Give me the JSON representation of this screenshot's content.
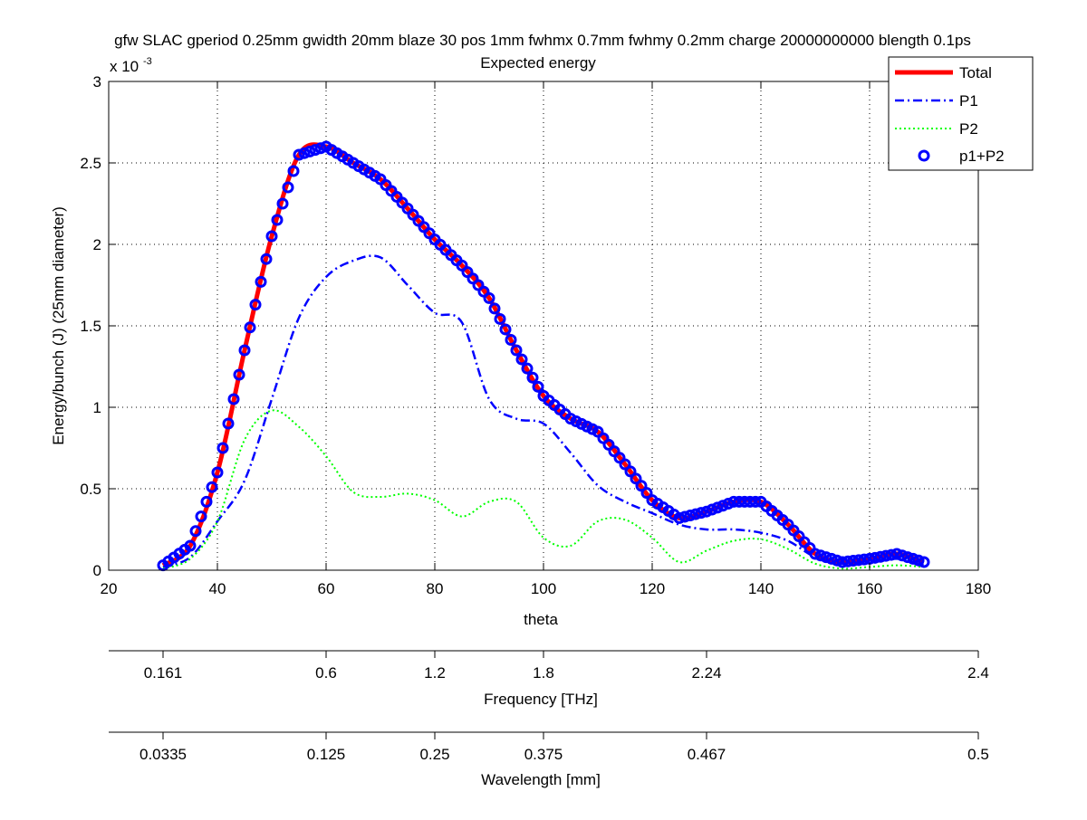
{
  "figure": {
    "title": "gfw SLAC gperiod 0.25mm gwidth 20mm blaze 30 pos 1mm fwhmx 0.7mm fwhmy 0.2mm charge 20000000000 blength 0.1ps",
    "subtitle": "Expected energy"
  },
  "chart_data": [
    {
      "type": "line",
      "title": "gfw SLAC gperiod 0.25mm gwidth 20mm blaze 30 pos 1mm fwhmx 0.7mm fwhmy 0.2mm charge 20000000000 blength 0.1ps",
      "subtitle": "Expected energy",
      "xlabel": "theta",
      "ylabel": "Energy/bunch (J) (25mm diameter)",
      "y_exponent_label": "x 10",
      "y_exponent": "-3",
      "xlim": [
        20,
        180
      ],
      "ylim": [
        0,
        3
      ],
      "xticks": [
        20,
        40,
        60,
        80,
        100,
        120,
        140,
        160,
        180
      ],
      "yticks": [
        0,
        0.5,
        1,
        1.5,
        2,
        2.5,
        3
      ],
      "grid": true,
      "legend_position": "top-right",
      "x": [
        30,
        35,
        40,
        45,
        50,
        55,
        60,
        65,
        70,
        75,
        80,
        85,
        90,
        95,
        100,
        105,
        110,
        115,
        120,
        125,
        130,
        135,
        140,
        145,
        150,
        155,
        160,
        165,
        170
      ],
      "series": [
        {
          "name": "Total",
          "style": "solid",
          "color": "#ff0000",
          "values": [
            0.03,
            0.15,
            0.6,
            1.35,
            2.05,
            2.55,
            2.6,
            2.5,
            2.4,
            2.22,
            2.03,
            1.87,
            1.67,
            1.35,
            1.07,
            0.93,
            0.85,
            0.65,
            0.43,
            0.32,
            0.36,
            0.42,
            0.42,
            0.28,
            0.1,
            0.05,
            0.07,
            0.1,
            0.05
          ]
        },
        {
          "name": "P1",
          "style": "dash-dot",
          "color": "#0000ff",
          "values": [
            0.02,
            0.08,
            0.3,
            0.55,
            1.05,
            1.55,
            1.8,
            1.9,
            1.92,
            1.75,
            1.58,
            1.52,
            1.05,
            0.93,
            0.9,
            0.72,
            0.52,
            0.42,
            0.35,
            0.28,
            0.25,
            0.25,
            0.23,
            0.18,
            0.08,
            0.04,
            0.05,
            0.07,
            0.03
          ]
        },
        {
          "name": "P2",
          "style": "dotted",
          "color": "#00ff00",
          "values": [
            0.01,
            0.07,
            0.3,
            0.8,
            0.98,
            0.88,
            0.7,
            0.48,
            0.45,
            0.47,
            0.43,
            0.33,
            0.42,
            0.42,
            0.2,
            0.15,
            0.3,
            0.31,
            0.2,
            0.05,
            0.12,
            0.18,
            0.19,
            0.13,
            0.04,
            0.01,
            0.02,
            0.03,
            0.02
          ]
        },
        {
          "name": "p1+P2",
          "style": "circle-markers",
          "color": "#0000ff",
          "values": [
            0.03,
            0.15,
            0.6,
            1.35,
            2.05,
            2.55,
            2.6,
            2.5,
            2.4,
            2.22,
            2.03,
            1.87,
            1.67,
            1.35,
            1.07,
            0.93,
            0.85,
            0.65,
            0.43,
            0.32,
            0.36,
            0.42,
            0.42,
            0.28,
            0.1,
            0.05,
            0.07,
            0.1,
            0.05
          ]
        }
      ]
    },
    {
      "type": "axis",
      "xlabel": "Frequency [THz]",
      "ticks": [
        "0.161",
        "0.6",
        "1.2",
        "1.8",
        "2.24",
        "2.4"
      ],
      "tick_theta": [
        30,
        60,
        80,
        100,
        130,
        180
      ]
    },
    {
      "type": "axis",
      "xlabel": "Wavelength [mm]",
      "ticks": [
        "0.0335",
        "0.125",
        "0.25",
        "0.375",
        "0.467",
        "0.5"
      ],
      "tick_theta": [
        30,
        60,
        80,
        100,
        130,
        180
      ]
    }
  ]
}
